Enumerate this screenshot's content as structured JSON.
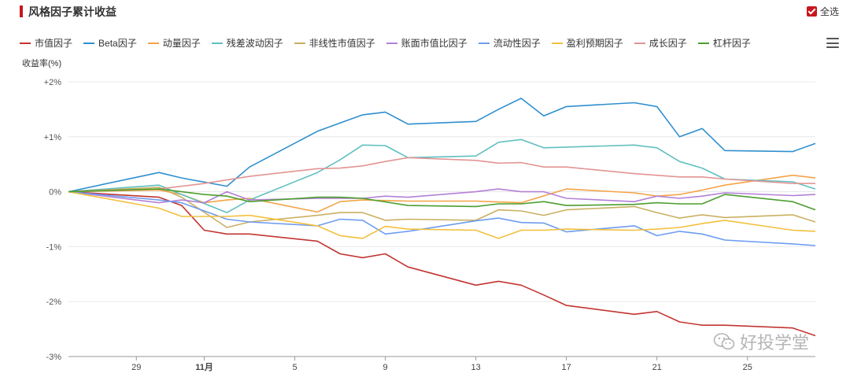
{
  "header": {
    "title": "风格因子累计收益",
    "select_all": "全选"
  },
  "menu_icon": "hamburger-menu-icon",
  "watermark": {
    "text": "好投学堂",
    "icon": "wechat-icon"
  },
  "chart_data": {
    "type": "line",
    "title": "风格因子累计收益",
    "ylabel": "收益率(%)",
    "xlabel": "",
    "ylim": [
      -3,
      2
    ],
    "yticks": [
      "+2%",
      "+1%",
      "0%",
      "-1%",
      "-2%",
      "-3%"
    ],
    "x": [
      "10-26",
      "10-27",
      "10-28",
      "10-29",
      "10-30",
      "10-31",
      "11-01",
      "11-02",
      "11-03",
      "11-04",
      "11-05",
      "11-06",
      "11-07",
      "11-08",
      "11-09",
      "11-10",
      "11-11",
      "11-12",
      "11-13",
      "11-14",
      "11-15",
      "11-16",
      "11-17",
      "11-18",
      "11-19",
      "11-20",
      "11-21",
      "11-22",
      "11-23",
      "11-24",
      "11-25",
      "11-26",
      "11-27",
      "11-28"
    ],
    "xtick_labels": [
      {
        "label": "29",
        "at": "10-29"
      },
      {
        "label": "11月",
        "at": "11-01"
      },
      {
        "label": "5",
        "at": "11-05"
      },
      {
        "label": "9",
        "at": "11-09"
      },
      {
        "label": "13",
        "at": "11-13"
      },
      {
        "label": "17",
        "at": "11-17"
      },
      {
        "label": "21",
        "at": "11-21"
      },
      {
        "label": "25",
        "at": "11-25"
      }
    ],
    "grid": true,
    "legend_position": "top-left",
    "series": [
      {
        "name": "市值因子",
        "color": "#c23531",
        "points": [
          [
            "10-26",
            0
          ],
          [
            "10-30",
            -0.1
          ],
          [
            "10-31",
            -0.25
          ],
          [
            "11-01",
            -0.7
          ],
          [
            "11-02",
            -0.77
          ],
          [
            "11-03",
            -0.77
          ],
          [
            "11-06",
            -0.9
          ],
          [
            "11-07",
            -1.13
          ],
          [
            "11-08",
            -1.2
          ],
          [
            "11-09",
            -1.13
          ],
          [
            "11-10",
            -1.37
          ],
          [
            "11-13",
            -1.7
          ],
          [
            "11-14",
            -1.63
          ],
          [
            "11-15",
            -1.7
          ],
          [
            "11-16",
            -1.88
          ],
          [
            "11-17",
            -2.07
          ],
          [
            "11-20",
            -2.23
          ],
          [
            "11-21",
            -2.18
          ],
          [
            "11-22",
            -2.37
          ],
          [
            "11-23",
            -2.43
          ],
          [
            "11-24",
            -2.43
          ],
          [
            "11-27",
            -2.48
          ],
          [
            "11-28",
            -2.62
          ]
        ]
      },
      {
        "name": "Beta因子",
        "color": "#2f8fcf",
        "points": [
          [
            "10-26",
            0
          ],
          [
            "10-30",
            0.35
          ],
          [
            "10-31",
            0.25
          ],
          [
            "11-02",
            0.1
          ],
          [
            "11-03",
            0.45
          ],
          [
            "11-06",
            1.1
          ],
          [
            "11-07",
            1.25
          ],
          [
            "11-08",
            1.4
          ],
          [
            "11-09",
            1.45
          ],
          [
            "11-10",
            1.23
          ],
          [
            "11-13",
            1.28
          ],
          [
            "11-14",
            1.5
          ],
          [
            "11-15",
            1.7
          ],
          [
            "11-16",
            1.38
          ],
          [
            "11-17",
            1.55
          ],
          [
            "11-20",
            1.62
          ],
          [
            "11-21",
            1.55
          ],
          [
            "11-22",
            1.0
          ],
          [
            "11-23",
            1.15
          ],
          [
            "11-24",
            0.75
          ],
          [
            "11-27",
            0.73
          ],
          [
            "11-28",
            0.88
          ]
        ]
      },
      {
        "name": "动量因子",
        "color": "#f3a447",
        "points": [
          [
            "10-26",
            0
          ],
          [
            "10-30",
            0.03
          ],
          [
            "10-31",
            -0.05
          ],
          [
            "11-01",
            -0.2
          ],
          [
            "11-02",
            -0.15
          ],
          [
            "11-03",
            -0.12
          ],
          [
            "11-06",
            -0.37
          ],
          [
            "11-07",
            -0.18
          ],
          [
            "11-08",
            -0.15
          ],
          [
            "11-10",
            -0.17
          ],
          [
            "11-13",
            -0.17
          ],
          [
            "11-15",
            -0.2
          ],
          [
            "11-17",
            0.05
          ],
          [
            "11-20",
            -0.02
          ],
          [
            "11-21",
            -0.08
          ],
          [
            "11-22",
            -0.05
          ],
          [
            "11-23",
            0.03
          ],
          [
            "11-24",
            0.12
          ],
          [
            "11-27",
            0.3
          ],
          [
            "11-28",
            0.25
          ]
        ]
      },
      {
        "name": "残差波动因子",
        "color": "#61bfc0",
        "points": [
          [
            "10-26",
            0
          ],
          [
            "10-30",
            0.12
          ],
          [
            "10-31",
            -0.05
          ],
          [
            "11-02",
            -0.38
          ],
          [
            "11-03",
            -0.15
          ],
          [
            "11-06",
            0.35
          ],
          [
            "11-07",
            0.58
          ],
          [
            "11-08",
            0.85
          ],
          [
            "11-09",
            0.84
          ],
          [
            "11-10",
            0.62
          ],
          [
            "11-13",
            0.65
          ],
          [
            "11-14",
            0.9
          ],
          [
            "11-15",
            0.95
          ],
          [
            "11-16",
            0.8
          ],
          [
            "11-20",
            0.85
          ],
          [
            "11-21",
            0.8
          ],
          [
            "11-22",
            0.55
          ],
          [
            "11-23",
            0.43
          ],
          [
            "11-24",
            0.23
          ],
          [
            "11-27",
            0.18
          ],
          [
            "11-28",
            0.05
          ]
        ]
      },
      {
        "name": "非线性市值因子",
        "color": "#c9b061",
        "points": [
          [
            "10-26",
            0
          ],
          [
            "10-30",
            0.08
          ],
          [
            "10-31",
            -0.1
          ],
          [
            "11-02",
            -0.65
          ],
          [
            "11-03",
            -0.55
          ],
          [
            "11-06",
            -0.43
          ],
          [
            "11-07",
            -0.38
          ],
          [
            "11-08",
            -0.38
          ],
          [
            "11-09",
            -0.52
          ],
          [
            "11-10",
            -0.5
          ],
          [
            "11-13",
            -0.52
          ],
          [
            "11-14",
            -0.33
          ],
          [
            "11-15",
            -0.35
          ],
          [
            "11-16",
            -0.43
          ],
          [
            "11-17",
            -0.33
          ],
          [
            "11-20",
            -0.27
          ],
          [
            "11-21",
            -0.38
          ],
          [
            "11-22",
            -0.48
          ],
          [
            "11-23",
            -0.42
          ],
          [
            "11-24",
            -0.47
          ],
          [
            "11-27",
            -0.42
          ],
          [
            "11-28",
            -0.55
          ]
        ]
      },
      {
        "name": "账面市值比因子",
        "color": "#b380d6",
        "points": [
          [
            "10-26",
            0
          ],
          [
            "10-30",
            -0.2
          ],
          [
            "10-31",
            -0.15
          ],
          [
            "11-01",
            -0.2
          ],
          [
            "11-02",
            0.0
          ],
          [
            "11-03",
            -0.15
          ],
          [
            "11-06",
            -0.12
          ],
          [
            "11-08",
            -0.12
          ],
          [
            "11-09",
            -0.08
          ],
          [
            "11-10",
            -0.1
          ],
          [
            "11-13",
            0.0
          ],
          [
            "11-14",
            0.05
          ],
          [
            "11-15",
            0.0
          ],
          [
            "11-16",
            0.0
          ],
          [
            "11-17",
            -0.12
          ],
          [
            "11-20",
            -0.18
          ],
          [
            "11-21",
            -0.08
          ],
          [
            "11-22",
            -0.12
          ],
          [
            "11-23",
            -0.08
          ],
          [
            "11-24",
            -0.02
          ],
          [
            "11-27",
            -0.07
          ],
          [
            "11-28",
            -0.05
          ]
        ]
      },
      {
        "name": "流动性因子",
        "color": "#6e9cf0",
        "points": [
          [
            "10-26",
            0
          ],
          [
            "10-30",
            -0.15
          ],
          [
            "10-31",
            -0.2
          ],
          [
            "11-02",
            -0.5
          ],
          [
            "11-03",
            -0.55
          ],
          [
            "11-06",
            -0.62
          ],
          [
            "11-07",
            -0.5
          ],
          [
            "11-08",
            -0.52
          ],
          [
            "11-09",
            -0.77
          ],
          [
            "11-10",
            -0.72
          ],
          [
            "11-13",
            -0.53
          ],
          [
            "11-14",
            -0.48
          ],
          [
            "11-15",
            -0.56
          ],
          [
            "11-16",
            -0.57
          ],
          [
            "11-17",
            -0.73
          ],
          [
            "11-20",
            -0.62
          ],
          [
            "11-21",
            -0.8
          ],
          [
            "11-22",
            -0.72
          ],
          [
            "11-23",
            -0.77
          ],
          [
            "11-24",
            -0.88
          ],
          [
            "11-27",
            -0.95
          ],
          [
            "11-28",
            -0.98
          ]
        ]
      },
      {
        "name": "盈利预期因子",
        "color": "#f2c03d",
        "points": [
          [
            "10-26",
            0
          ],
          [
            "10-30",
            -0.3
          ],
          [
            "10-31",
            -0.45
          ],
          [
            "11-02",
            -0.45
          ],
          [
            "11-03",
            -0.43
          ],
          [
            "11-06",
            -0.62
          ],
          [
            "11-07",
            -0.8
          ],
          [
            "11-08",
            -0.85
          ],
          [
            "11-09",
            -0.63
          ],
          [
            "11-10",
            -0.68
          ],
          [
            "11-13",
            -0.7
          ],
          [
            "11-14",
            -0.85
          ],
          [
            "11-15",
            -0.7
          ],
          [
            "11-16",
            -0.7
          ],
          [
            "11-17",
            -0.68
          ],
          [
            "11-20",
            -0.7
          ],
          [
            "11-21",
            -0.68
          ],
          [
            "11-22",
            -0.65
          ],
          [
            "11-23",
            -0.58
          ],
          [
            "11-24",
            -0.52
          ],
          [
            "11-27",
            -0.7
          ],
          [
            "11-28",
            -0.72
          ]
        ]
      },
      {
        "name": "成长因子",
        "color": "#e39494",
        "points": [
          [
            "10-26",
            0
          ],
          [
            "10-30",
            0.05
          ],
          [
            "11-01",
            0.15
          ],
          [
            "11-03",
            0.28
          ],
          [
            "11-06",
            0.42
          ],
          [
            "11-07",
            0.43
          ],
          [
            "11-08",
            0.47
          ],
          [
            "11-09",
            0.55
          ],
          [
            "11-10",
            0.62
          ],
          [
            "11-13",
            0.57
          ],
          [
            "11-14",
            0.52
          ],
          [
            "11-15",
            0.53
          ],
          [
            "11-16",
            0.45
          ],
          [
            "11-17",
            0.45
          ],
          [
            "11-20",
            0.33
          ],
          [
            "11-21",
            0.3
          ],
          [
            "11-22",
            0.27
          ],
          [
            "11-23",
            0.27
          ],
          [
            "11-24",
            0.23
          ],
          [
            "11-27",
            0.15
          ],
          [
            "11-28",
            0.15
          ]
        ]
      },
      {
        "name": "杠杆因子",
        "color": "#4c9e2f",
        "points": [
          [
            "10-26",
            0
          ],
          [
            "10-30",
            0.05
          ],
          [
            "10-31",
            0.0
          ],
          [
            "11-01",
            -0.05
          ],
          [
            "11-02",
            -0.08
          ],
          [
            "11-03",
            -0.18
          ],
          [
            "11-06",
            -0.1
          ],
          [
            "11-07",
            -0.1
          ],
          [
            "11-08",
            -0.12
          ],
          [
            "11-10",
            -0.25
          ],
          [
            "11-13",
            -0.27
          ],
          [
            "11-14",
            -0.22
          ],
          [
            "11-15",
            -0.22
          ],
          [
            "11-16",
            -0.18
          ],
          [
            "11-17",
            -0.25
          ],
          [
            "11-20",
            -0.23
          ],
          [
            "11-21",
            -0.2
          ],
          [
            "11-22",
            -0.22
          ],
          [
            "11-23",
            -0.22
          ],
          [
            "11-24",
            -0.05
          ],
          [
            "11-27",
            -0.18
          ],
          [
            "11-28",
            -0.33
          ]
        ]
      }
    ]
  }
}
